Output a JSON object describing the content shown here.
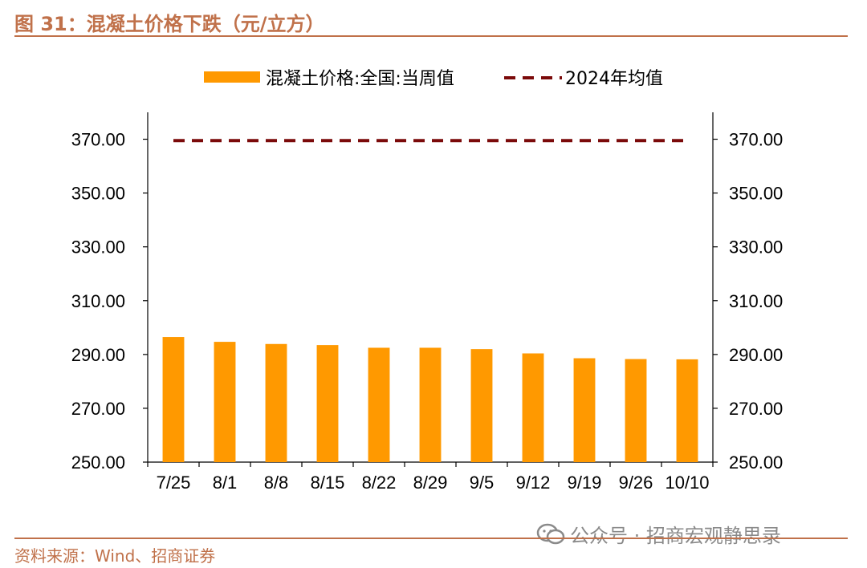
{
  "figure": {
    "title": "图 31：混凝土价格下跌（元/立方）",
    "source": "资料来源：Wind、招商证券",
    "watermark": "公众号 · 招商宏观静思录",
    "watermark_icon": "wechat-icon"
  },
  "chart_data": {
    "type": "bar",
    "categories": [
      "7/25",
      "8/1",
      "8/8",
      "8/15",
      "8/22",
      "8/29",
      "9/5",
      "9/12",
      "9/19",
      "9/26",
      "10/10"
    ],
    "series": [
      {
        "name": "混凝土价格:全国:当周值",
        "type": "bar",
        "color": "#ff9900",
        "values": [
          296.5,
          294.7,
          293.9,
          293.5,
          292.5,
          292.5,
          292.0,
          290.4,
          288.6,
          288.3,
          288.2
        ]
      },
      {
        "name": "2024年均值",
        "type": "line",
        "style": "dashed",
        "color": "#7b0a0a",
        "values": [
          369.5,
          369.5,
          369.5,
          369.5,
          369.5,
          369.5,
          369.5,
          369.5,
          369.5,
          369.5,
          369.5
        ]
      }
    ],
    "ylim": [
      250,
      380
    ],
    "yticks": [
      "250.00",
      "270.00",
      "290.00",
      "310.00",
      "330.00",
      "350.00",
      "370.00"
    ],
    "secondary_axis": true,
    "legend_position": "top-center",
    "grid": false
  }
}
